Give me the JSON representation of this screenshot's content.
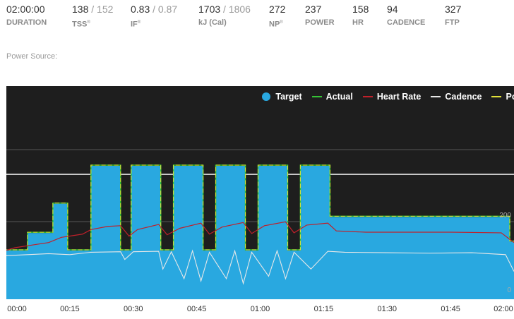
{
  "summary": {
    "duration": {
      "value": "02:00:00",
      "label": "DURATION"
    },
    "tss": {
      "value": "138",
      "sub": "152",
      "label": "TSS",
      "mark": "®"
    },
    "if": {
      "value": "0.83",
      "sub": "0.87",
      "label": "IF",
      "mark": "®"
    },
    "kj": {
      "value": "1703",
      "sub": "1806",
      "label": "kJ (Cal)"
    },
    "np": {
      "value": "272",
      "label": "NP",
      "mark": "®"
    },
    "power": {
      "value": "237",
      "label": "POWER"
    },
    "hr": {
      "value": "158",
      "label": "HR"
    },
    "cadence": {
      "value": "94",
      "label": "CADENCE"
    },
    "ftp": {
      "value": "327",
      "label": "FTP"
    },
    "separator": "/"
  },
  "power_source": {
    "label": "Power Source:"
  },
  "legend": {
    "target": "Target",
    "actual": "Actual",
    "heart_rate": "Heart Rate",
    "cadence": "Cadence",
    "power": "Power"
  },
  "colors": {
    "target": "#29a8e0",
    "actual": "#35c235",
    "heart_rate": "#c0202a",
    "cadence": "#e8e8e8",
    "power": "#e2e23a",
    "background": "#1e1e1e"
  },
  "chart_data": {
    "type": "area",
    "x_ticks": [
      "00:00",
      "00:15",
      "00:30",
      "00:45",
      "01:00",
      "01:15",
      "01:30",
      "01:45",
      "02:00"
    ],
    "x_range_minutes": [
      0,
      120
    ],
    "y_right_tick_labels": [
      "200",
      "0"
    ],
    "grid": true,
    "legend_position": "top-right",
    "target_steps": [
      {
        "from": 0,
        "to": 5,
        "value": 150
      },
      {
        "from": 5,
        "to": 11,
        "value": 210
      },
      {
        "from": 11,
        "to": 14.5,
        "value": 310
      },
      {
        "from": 14.5,
        "to": 20,
        "value": 150
      },
      {
        "from": 20,
        "to": 27,
        "value": 440
      },
      {
        "from": 27,
        "to": 29.5,
        "value": 150
      },
      {
        "from": 29.5,
        "to": 36.5,
        "value": 440
      },
      {
        "from": 36.5,
        "to": 39.5,
        "value": 150
      },
      {
        "from": 39.5,
        "to": 46.5,
        "value": 440
      },
      {
        "from": 46.5,
        "to": 49.5,
        "value": 150
      },
      {
        "from": 49.5,
        "to": 56.5,
        "value": 440
      },
      {
        "from": 56.5,
        "to": 59.5,
        "value": 150
      },
      {
        "from": 59.5,
        "to": 66.5,
        "value": 440
      },
      {
        "from": 66.5,
        "to": 69.5,
        "value": 150
      },
      {
        "from": 69.5,
        "to": 76.5,
        "value": 440
      },
      {
        "from": 76.5,
        "to": 119,
        "value": 265
      },
      {
        "from": 119,
        "to": 120,
        "value": 180
      }
    ],
    "heart_rate": [
      {
        "x": 0,
        "y": 138
      },
      {
        "x": 2,
        "y": 142
      },
      {
        "x": 6,
        "y": 146
      },
      {
        "x": 10,
        "y": 150
      },
      {
        "x": 13,
        "y": 158
      },
      {
        "x": 15,
        "y": 160
      },
      {
        "x": 18,
        "y": 163
      },
      {
        "x": 20,
        "y": 170
      },
      {
        "x": 24,
        "y": 175
      },
      {
        "x": 27,
        "y": 176
      },
      {
        "x": 29,
        "y": 160
      },
      {
        "x": 31,
        "y": 170
      },
      {
        "x": 36,
        "y": 178
      },
      {
        "x": 38,
        "y": 162
      },
      {
        "x": 41,
        "y": 172
      },
      {
        "x": 46,
        "y": 180
      },
      {
        "x": 48,
        "y": 163
      },
      {
        "x": 51,
        "y": 174
      },
      {
        "x": 56,
        "y": 181
      },
      {
        "x": 58,
        "y": 164
      },
      {
        "x": 61,
        "y": 176
      },
      {
        "x": 66,
        "y": 182
      },
      {
        "x": 68,
        "y": 165
      },
      {
        "x": 71,
        "y": 177
      },
      {
        "x": 76,
        "y": 180
      },
      {
        "x": 78,
        "y": 168
      },
      {
        "x": 85,
        "y": 166
      },
      {
        "x": 95,
        "y": 166
      },
      {
        "x": 105,
        "y": 166
      },
      {
        "x": 117,
        "y": 165
      },
      {
        "x": 120,
        "y": 150
      }
    ],
    "cadence": [
      {
        "x": 0,
        "y": 88
      },
      {
        "x": 5,
        "y": 90
      },
      {
        "x": 10,
        "y": 92
      },
      {
        "x": 15,
        "y": 90
      },
      {
        "x": 20,
        "y": 95
      },
      {
        "x": 27,
        "y": 96
      },
      {
        "x": 28,
        "y": 80
      },
      {
        "x": 30,
        "y": 96
      },
      {
        "x": 36,
        "y": 97
      },
      {
        "x": 37,
        "y": 60
      },
      {
        "x": 39,
        "y": 96
      },
      {
        "x": 42,
        "y": 40
      },
      {
        "x": 44,
        "y": 98
      },
      {
        "x": 46,
        "y": 35
      },
      {
        "x": 48,
        "y": 95
      },
      {
        "x": 52,
        "y": 40
      },
      {
        "x": 54,
        "y": 98
      },
      {
        "x": 56,
        "y": 30
      },
      {
        "x": 58,
        "y": 95
      },
      {
        "x": 62,
        "y": 45
      },
      {
        "x": 64,
        "y": 98
      },
      {
        "x": 66,
        "y": 40
      },
      {
        "x": 68,
        "y": 95
      },
      {
        "x": 72,
        "y": 60
      },
      {
        "x": 76,
        "y": 97
      },
      {
        "x": 80,
        "y": 95
      },
      {
        "x": 90,
        "y": 94
      },
      {
        "x": 100,
        "y": 93
      },
      {
        "x": 110,
        "y": 94
      },
      {
        "x": 118,
        "y": 90
      },
      {
        "x": 120,
        "y": 55
      }
    ]
  }
}
